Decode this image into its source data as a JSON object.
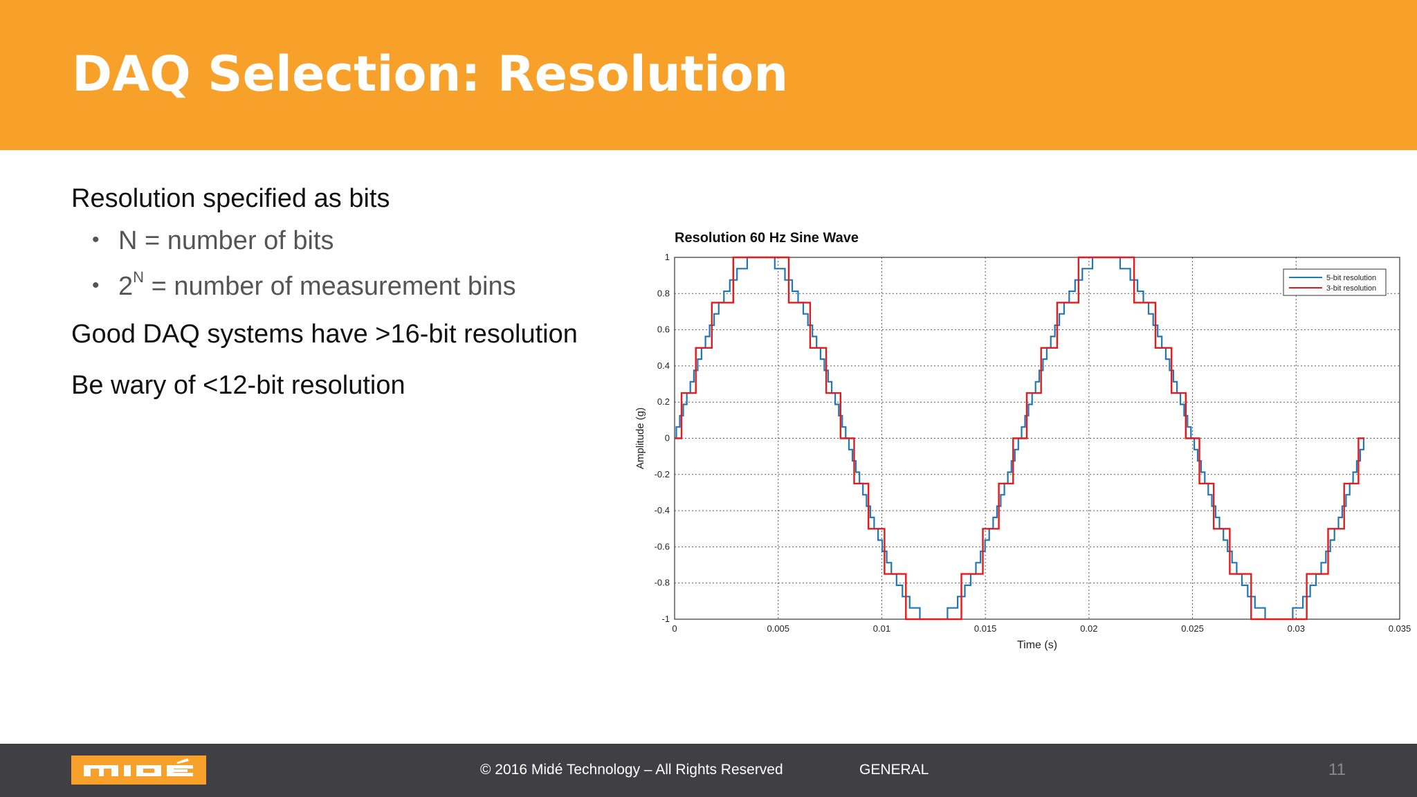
{
  "slide": {
    "title": "DAQ Selection: Resolution",
    "bullets": {
      "b1": "Resolution specified as bits",
      "b1_sub1": "N = number of bits",
      "b1_sub2_base": "2",
      "b1_sub2_exp": "N",
      "b1_sub2_rest": " = number of measurement bins",
      "b2": "Good DAQ systems have >16-bit resolution",
      "b3": "Be wary of <12-bit resolution"
    }
  },
  "footer": {
    "logo_text": "MIDÉ",
    "copyright": "© 2016 Midé Technology – All Rights Reserved",
    "classification": "GENERAL",
    "page_number": "11"
  },
  "colors": {
    "header": "#f7a02a",
    "footer": "#3f3f44",
    "series_5bit": "#1f77b4",
    "series_3bit": "#e41a1c"
  },
  "chart_data": {
    "type": "line",
    "title": "Resolution 60 Hz Sine Wave",
    "xlabel": "Time (s)",
    "ylabel": "Amplitude (g)",
    "xlim": [
      0,
      0.035
    ],
    "ylim": [
      -1,
      1
    ],
    "xticks": [
      "0",
      "0.005",
      "0.01",
      "0.015",
      "0.02",
      "0.025",
      "0.03",
      "0.035"
    ],
    "yticks": [
      "1",
      "0.8",
      "0.6",
      "0.4",
      "0.2",
      "0",
      "-0.2",
      "-0.4",
      "-0.6",
      "-0.8",
      "-1"
    ],
    "grid": true,
    "legend_position": "top-right",
    "signal": {
      "frequency_hz": 60,
      "amplitude": 1,
      "t_end": 0.0333
    },
    "series": [
      {
        "name": "5-bit resolution",
        "bits": 5,
        "color": "#1f77b4"
      },
      {
        "name": "3-bit resolution",
        "bits": 3,
        "color": "#e41a1c"
      }
    ]
  }
}
